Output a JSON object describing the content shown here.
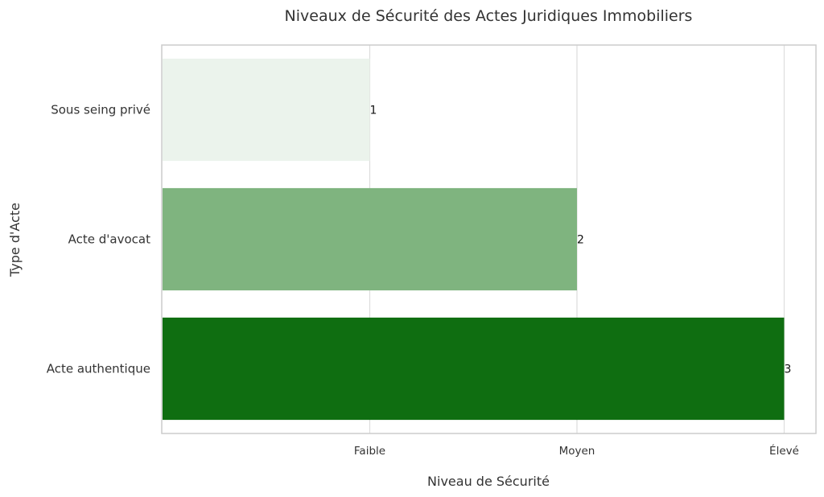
{
  "chart_data": {
    "type": "bar",
    "orientation": "horizontal",
    "title": "Niveaux de Sécurité des Actes Juridiques Immobiliers",
    "xlabel": "Niveau de Sécurité",
    "ylabel": "Type d'Acte",
    "categories": [
      "Sous seing privé",
      "Acte d'avocat",
      "Acte authentique"
    ],
    "values": [
      1,
      2,
      3
    ],
    "data_labels": [
      "1",
      "2",
      "3"
    ],
    "bar_colors": [
      "#ebf3ec",
      "#7fb47f",
      "#0f6e11"
    ],
    "x_ticks": [
      {
        "value": 1,
        "label": "Faible"
      },
      {
        "value": 2,
        "label": "Moyen"
      },
      {
        "value": 3,
        "label": "Élevé"
      }
    ],
    "xlim": [
      0,
      3.1
    ],
    "grid": true,
    "colors": {
      "grid": "#dddddd",
      "frame": "#cccccc",
      "text": "#333333"
    }
  }
}
